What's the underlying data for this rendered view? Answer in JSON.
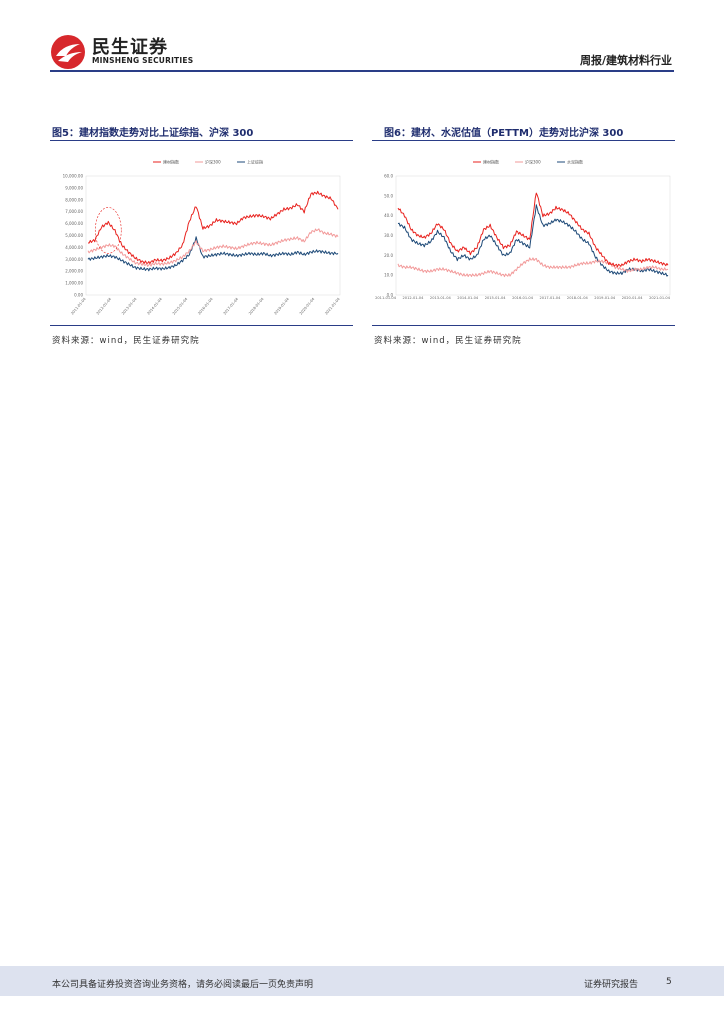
{
  "header": {
    "brand_cn": "民生证券",
    "brand_en": "MINSHENG SECURITIES",
    "report_type": "周报/建筑材料行业"
  },
  "figures": [
    {
      "title": "图5：建材指数走势对比上证综指、沪深 300",
      "source": "资料来源：wind，民生证券研究院"
    },
    {
      "title": "图6：建材、水泥估值（PETTM）走势对比沪深 300",
      "source": "资料来源：wind，民生证券研究院"
    }
  ],
  "colors": {
    "brand_red": "#d7282c",
    "rule_blue": "#2a3d87",
    "series_red": "#e8221e",
    "series_pink": "#f29a9a",
    "series_navy": "#1e4a78",
    "footer_bg": "#dde2ef"
  },
  "chart_data": [
    {
      "type": "line",
      "legend_position": "top",
      "series": [
        {
          "name": "建材指数",
          "color": "#e8221e",
          "values": [
            4400,
            4600,
            5700,
            6100,
            5400,
            4200,
            3600,
            3100,
            2800,
            2700,
            2950,
            2900,
            3100,
            3500,
            4200,
            6200,
            7500,
            5600,
            5800,
            6300,
            6200,
            6100,
            6000,
            6500,
            6600,
            6700,
            6600,
            6400,
            6800,
            7200,
            7300,
            7600,
            7000,
            8500,
            8600,
            8300,
            8100,
            7200
          ]
        },
        {
          "name": "沪深300",
          "color": "#f29a9a",
          "values": [
            3600,
            3800,
            4000,
            4200,
            4100,
            3500,
            3100,
            2700,
            2600,
            2500,
            2650,
            2600,
            2700,
            2900,
            3200,
            3700,
            4500,
            3700,
            3800,
            4000,
            4100,
            4000,
            3900,
            4100,
            4300,
            4400,
            4300,
            4200,
            4400,
            4600,
            4700,
            4800,
            4500,
            5300,
            5500,
            5200,
            5100,
            4900
          ]
        },
        {
          "name": "上证综指",
          "color": "#1e4a78",
          "values": [
            3000,
            3100,
            3200,
            3300,
            3200,
            2900,
            2600,
            2300,
            2200,
            2150,
            2250,
            2200,
            2300,
            2500,
            2900,
            3400,
            4800,
            3200,
            3300,
            3400,
            3500,
            3400,
            3300,
            3400,
            3500,
            3400,
            3500,
            3300,
            3400,
            3500,
            3400,
            3600,
            3400,
            3600,
            3700,
            3600,
            3500,
            3500
          ]
        }
      ],
      "y_ticks": [
        "0.00",
        "1,000.00",
        "2,000.00",
        "3,000.00",
        "4,000.00",
        "5,000.00",
        "6,000.00",
        "7,000.00",
        "8,000.00",
        "9,000.00",
        "10,000.00"
      ],
      "ylim": [
        0,
        10000
      ],
      "x_ticks": [
        "2011-01-04",
        "2012-01-04",
        "2013-01-04",
        "2014-01-04",
        "2015-01-04",
        "2016-01-04",
        "2017-01-04",
        "2018-01-04",
        "2019-01-04",
        "2020-01-04",
        "2021-01-04"
      ],
      "annotation": "ellipse highlighting 2012 peak"
    },
    {
      "type": "line",
      "legend_position": "top",
      "series": [
        {
          "name": "建材指数",
          "color": "#e8221e",
          "values": [
            44,
            40,
            33,
            30,
            29,
            31,
            36,
            33,
            26,
            22,
            24,
            21,
            24,
            33,
            35,
            29,
            24,
            25,
            32,
            30,
            28,
            52,
            40,
            41,
            44,
            43,
            41,
            37,
            33,
            31,
            24,
            20,
            16,
            15,
            15,
            17,
            18,
            17,
            18,
            17,
            16,
            15
          ]
        },
        {
          "name": "沪深300",
          "color": "#f29a9a",
          "values": [
            15,
            14,
            14,
            13,
            12,
            12,
            13,
            13,
            12,
            11,
            10,
            10,
            10,
            11,
            12,
            11,
            10,
            10,
            13,
            16,
            18,
            18,
            15,
            14,
            14,
            14,
            14,
            15,
            16,
            16,
            17,
            17,
            16,
            14,
            13,
            12,
            13,
            13,
            14,
            14,
            13,
            13
          ]
        },
        {
          "name": "水泥指数",
          "color": "#1e4a78",
          "values": [
            36,
            34,
            28,
            26,
            25,
            27,
            32,
            29,
            22,
            18,
            20,
            18,
            20,
            28,
            30,
            25,
            20,
            21,
            28,
            26,
            24,
            45,
            35,
            36,
            38,
            37,
            35,
            32,
            28,
            26,
            19,
            15,
            12,
            11,
            11,
            13,
            13,
            12,
            13,
            12,
            11,
            10
          ]
        }
      ],
      "y_ticks": [
        "0.0",
        "10.0",
        "20.0",
        "30.0",
        "40.0",
        "50.0",
        "60.0"
      ],
      "ylim": [
        0,
        60
      ],
      "x_ticks": [
        "2011-01-04",
        "2012-01-04",
        "2013-01-04",
        "2014-01-04",
        "2015-01-04",
        "2016-01-04",
        "2017-01-04",
        "2018-01-04",
        "2019-01-04",
        "2020-01-04",
        "2021-01-04"
      ]
    }
  ],
  "footer": {
    "disclaimer": "本公司具备证券投资咨询业务资格，请务必阅读最后一页免责声明",
    "report_label": "证券研究报告",
    "page_number": "5"
  }
}
